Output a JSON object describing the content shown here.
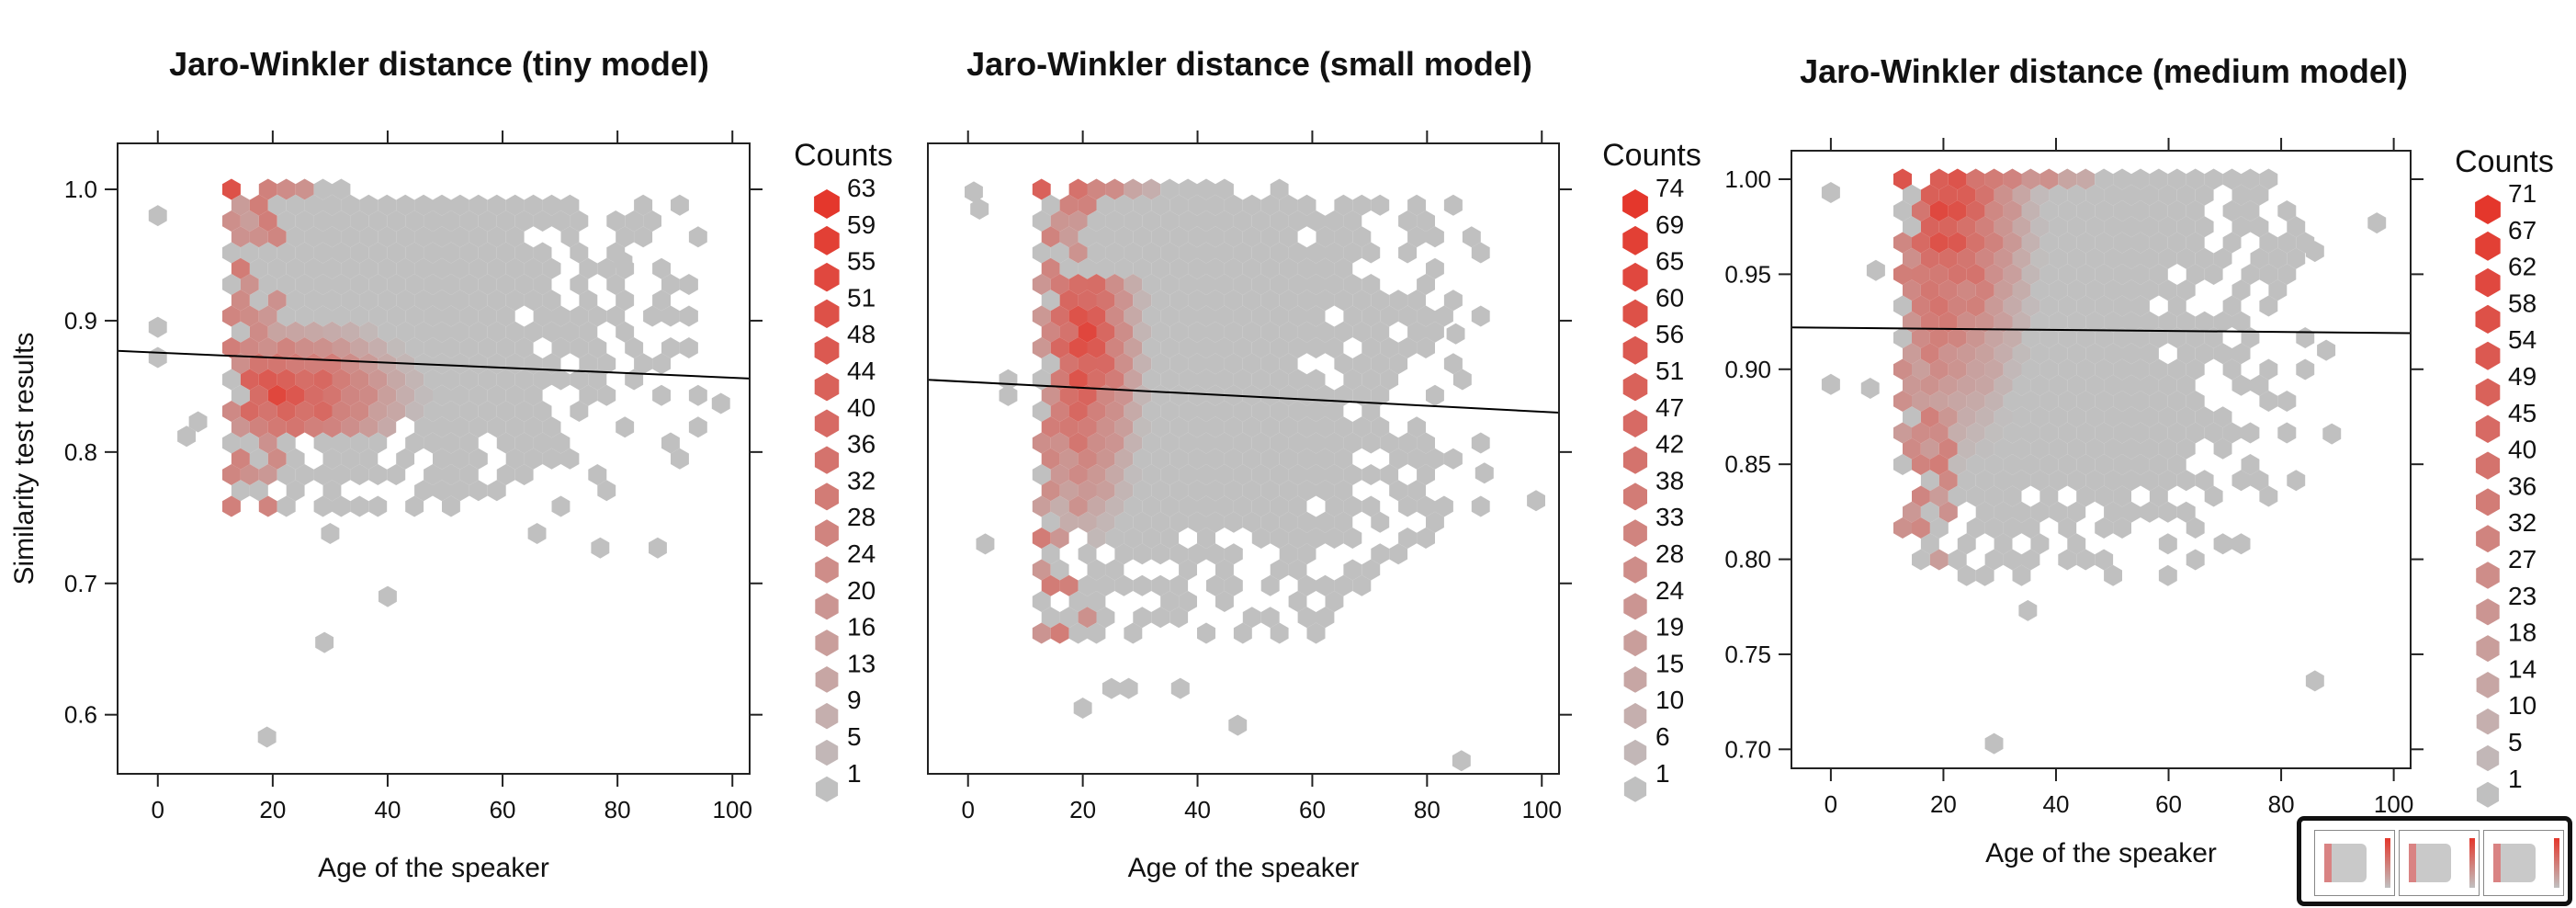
{
  "chart_data": [
    {
      "type": "hexbin",
      "title": "Jaro-Winkler distance (tiny model)",
      "xlabel": "Age of the speaker",
      "ylabel": "Similarity test results",
      "xlim": [
        -7,
        103
      ],
      "ylim": [
        0.555,
        1.035
      ],
      "xticks": [
        0,
        20,
        40,
        60,
        80,
        100
      ],
      "yticks": [
        0.6,
        0.7,
        0.8,
        0.9,
        1.0
      ],
      "ytick_labels": [
        "0.6",
        "0.7",
        "0.8",
        "0.9",
        "1.0"
      ],
      "show_yticklabels": true,
      "regression_line": {
        "x": [
          -7,
          103
        ],
        "y": [
          0.877,
          0.856
        ]
      },
      "legend_title": "Counts",
      "legend_values": [
        "63",
        "59",
        "55",
        "51",
        "48",
        "44",
        "40",
        "36",
        "32",
        "28",
        "24",
        "20",
        "16",
        "13",
        "9",
        "5",
        "1"
      ],
      "outliers": [
        [
          0,
          0.98
        ],
        [
          0,
          0.895
        ],
        [
          0,
          0.872
        ],
        [
          5,
          0.812
        ],
        [
          7,
          0.823
        ],
        [
          30,
          0.738
        ],
        [
          29,
          0.655
        ],
        [
          40,
          0.69
        ],
        [
          19,
          0.583
        ],
        [
          66,
          0.738
        ],
        [
          77,
          0.727
        ],
        [
          87,
          0.727
        ],
        [
          98,
          0.837
        ],
        [
          81,
          0.945
        ]
      ],
      "cloud": {
        "x": [
          16,
          93
        ],
        "y": [
          0.76,
          1.0
        ]
      },
      "hot_region": {
        "x": [
          17,
          45
        ],
        "y": [
          0.815,
          0.885
        ],
        "peak": [
          22,
          0.845
        ]
      },
      "top_band": {
        "x": [
          17,
          38
        ],
        "y": 1.0
      }
    },
    {
      "type": "hexbin",
      "title": "Jaro-Winkler distance (small model)",
      "xlabel": "Age of the speaker",
      "ylabel": "",
      "xlim": [
        -7,
        103
      ],
      "ylim": [
        0.555,
        1.035
      ],
      "xticks": [
        0,
        20,
        40,
        60,
        80,
        100
      ],
      "yticks": [
        0.6,
        0.7,
        0.8,
        0.9,
        1.0
      ],
      "ytick_labels": [
        "0.6",
        "0.7",
        "0.8",
        "0.9",
        "1.0"
      ],
      "show_yticklabels": false,
      "regression_line": {
        "x": [
          -7,
          103
        ],
        "y": [
          0.855,
          0.83
        ]
      },
      "legend_title": "Counts",
      "legend_values": [
        "74",
        "69",
        "65",
        "60",
        "56",
        "51",
        "47",
        "42",
        "38",
        "33",
        "28",
        "24",
        "19",
        "15",
        "10",
        "6",
        "1"
      ],
      "outliers": [
        [
          1,
          0.998
        ],
        [
          2,
          0.985
        ],
        [
          7,
          0.855
        ],
        [
          7,
          0.843
        ],
        [
          3,
          0.73
        ],
        [
          20,
          0.605
        ],
        [
          25,
          0.62
        ],
        [
          28,
          0.62
        ],
        [
          37,
          0.62
        ],
        [
          47,
          0.592
        ],
        [
          29,
          0.505
        ],
        [
          86,
          0.565
        ],
        [
          99,
          0.763
        ],
        [
          90,
          0.784
        ],
        [
          85,
          0.89
        ]
      ],
      "cloud": {
        "x": [
          16,
          88
        ],
        "y": [
          0.66,
          1.0
        ]
      },
      "hot_region": {
        "x": [
          17,
          30
        ],
        "y": [
          0.74,
          0.92
        ],
        "peak": [
          20,
          0.88
        ]
      },
      "top_band": {
        "x": [
          17,
          50
        ],
        "y": 1.0
      }
    },
    {
      "type": "hexbin",
      "title": "Jaro-Winkler distance (medium model)",
      "xlabel": "Age of the speaker",
      "ylabel": "",
      "xlim": [
        -7,
        103
      ],
      "ylim": [
        0.69,
        1.015
      ],
      "xticks": [
        0,
        20,
        40,
        60,
        80,
        100
      ],
      "yticks": [
        0.7,
        0.75,
        0.8,
        0.85,
        0.9,
        0.95,
        1.0
      ],
      "ytick_labels": [
        "0.70",
        "0.75",
        "0.80",
        "0.85",
        "0.90",
        "0.95",
        "1.00"
      ],
      "show_yticklabels": true,
      "regression_line": {
        "x": [
          -7,
          103
        ],
        "y": [
          0.922,
          0.919
        ]
      },
      "legend_title": "Counts",
      "legend_values": [
        "71",
        "67",
        "62",
        "58",
        "54",
        "49",
        "45",
        "40",
        "36",
        "32",
        "27",
        "23",
        "18",
        "14",
        "10",
        "5",
        "1"
      ],
      "outliers": [
        [
          0,
          0.993
        ],
        [
          0,
          0.892
        ],
        [
          7,
          0.89
        ],
        [
          8,
          0.952
        ],
        [
          29,
          0.703
        ],
        [
          35,
          0.773
        ],
        [
          86,
          0.736
        ],
        [
          86,
          0.962
        ],
        [
          89,
          0.866
        ],
        [
          88,
          0.91
        ],
        [
          97,
          0.977
        ]
      ],
      "cloud": {
        "x": [
          16,
          84
        ],
        "y": [
          0.79,
          1.0
        ]
      },
      "hot_region": {
        "x": [
          17,
          37
        ],
        "y": [
          0.83,
          1.0
        ],
        "peak": [
          20,
          0.995
        ]
      },
      "top_band": {
        "x": [
          17,
          78
        ],
        "y": 1.0
      }
    }
  ],
  "colors": {
    "low": "#c0c0c0",
    "high": "#e4372c",
    "axis": "#222222"
  }
}
